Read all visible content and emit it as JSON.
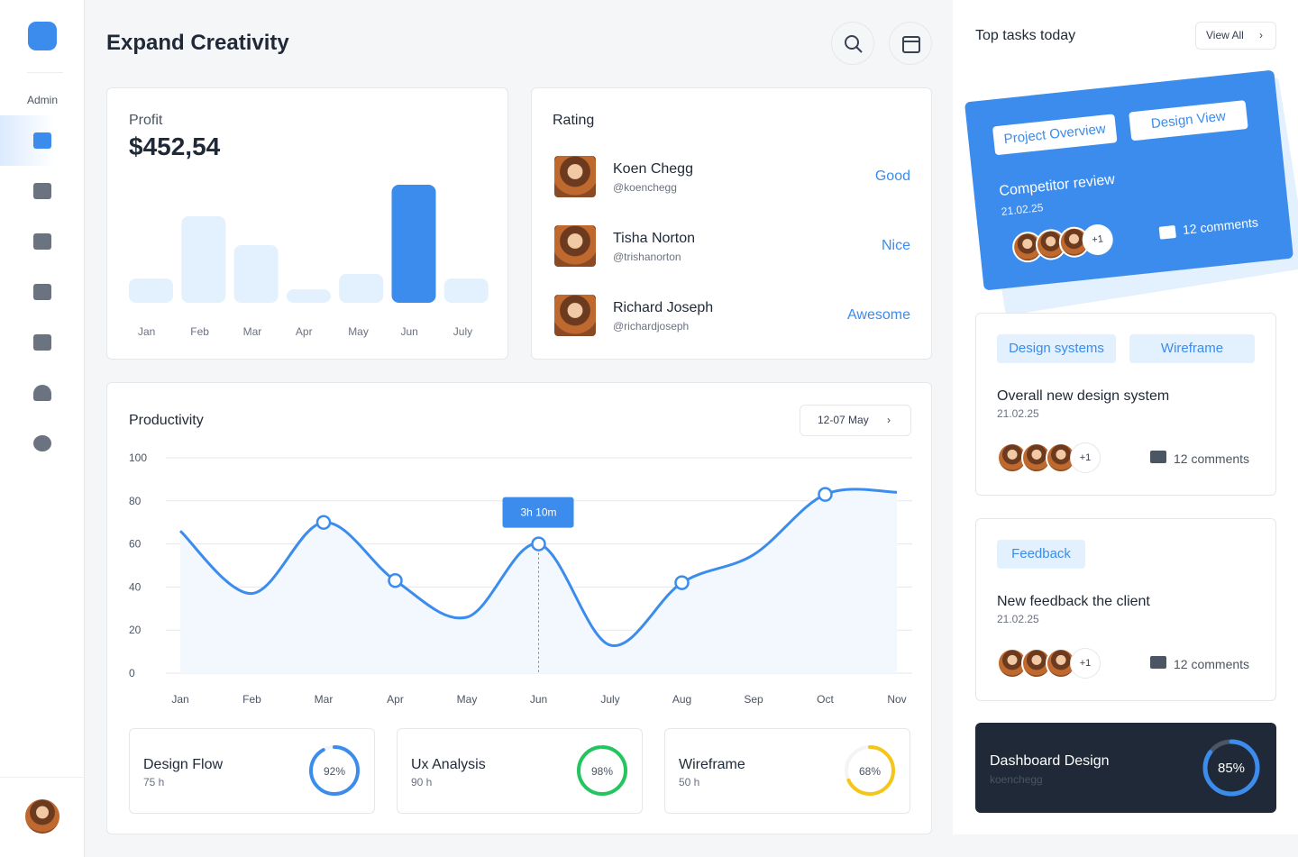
{
  "sidebar": {
    "role": "Admin"
  },
  "header": {
    "title": "Expand Creativity"
  },
  "profit": {
    "title": "Profit",
    "amount": "$452,54",
    "chart_data": {
      "type": "bar",
      "categories": [
        "Jan",
        "Feb",
        "Mar",
        "Apr",
        "May",
        "Jun",
        "July"
      ],
      "values": [
        27,
        96,
        64,
        15,
        32,
        131,
        27
      ],
      "colors": [
        "#e3f0fd",
        "#e3f0fd",
        "#e3f0fd",
        "#e3f0fd",
        "#e3f0fd",
        "#3b8ced",
        "#e3f0fd"
      ]
    }
  },
  "rating": {
    "title": "Rating",
    "people": [
      {
        "name": "Koen Chegg",
        "handle": "@koenchegg",
        "rating": "Good"
      },
      {
        "name": "Tisha Norton",
        "handle": "@trishanorton",
        "rating": "Nice"
      },
      {
        "name": "Richard Joseph",
        "handle": "@richardjoseph",
        "rating": "Awesome"
      }
    ]
  },
  "productivity": {
    "title": "Productivity",
    "range": "12-07 May",
    "chart_data": {
      "type": "line",
      "categories": [
        "Jan",
        "Feb",
        "Mar",
        "Apr",
        "May",
        "Jun",
        "July",
        "Aug",
        "Sep",
        "Oct",
        "Nov"
      ],
      "values": [
        66,
        37,
        70,
        43,
        26,
        60,
        13,
        42,
        55,
        83,
        84
      ],
      "color": "#3b8ced",
      "ylim": [
        0,
        100
      ],
      "yticks": [
        0,
        20,
        40,
        60,
        80,
        100
      ],
      "grid": true,
      "markers": [
        "Mar",
        "Apr",
        "Jun",
        "Aug",
        "Oct"
      ],
      "annotations": [
        {
          "x": "Jun",
          "text": "3h 10m"
        }
      ]
    }
  },
  "stats": [
    {
      "name": "Design Flow",
      "hours": "75 h",
      "value": 92,
      "value_label": "92%",
      "color": "#3b8ced"
    },
    {
      "name": "Ux Analysis",
      "hours": "90 h",
      "value": 98,
      "value_label": "98%",
      "color": "#22c55e"
    },
    {
      "name": "Wireframe",
      "hours": "50 h",
      "value": 68,
      "value_label": "68%",
      "color": "#f5c518"
    }
  ],
  "tasks": {
    "title": "Top tasks today",
    "view_all": "View All",
    "cards": [
      {
        "tags": [
          "Project Overview",
          "Design View"
        ],
        "title": "Competitor review",
        "date": "21.02.25",
        "extra": "+1",
        "comments": "12 comments"
      },
      {
        "tags": [
          "Design systems",
          "Wireframe"
        ],
        "title": "Overall new design system",
        "date": "21.02.25",
        "extra": "+1",
        "comments": "12 comments"
      },
      {
        "tags": [
          "Feedback"
        ],
        "title": "New feedback the client",
        "date": "21.02.25",
        "extra": "+1",
        "comments": "12 comments"
      }
    ],
    "featured": {
      "title": "Dashboard Design",
      "user": "koenchegg",
      "value": 85,
      "value_label": "85%",
      "color": "#3b8ced"
    }
  }
}
